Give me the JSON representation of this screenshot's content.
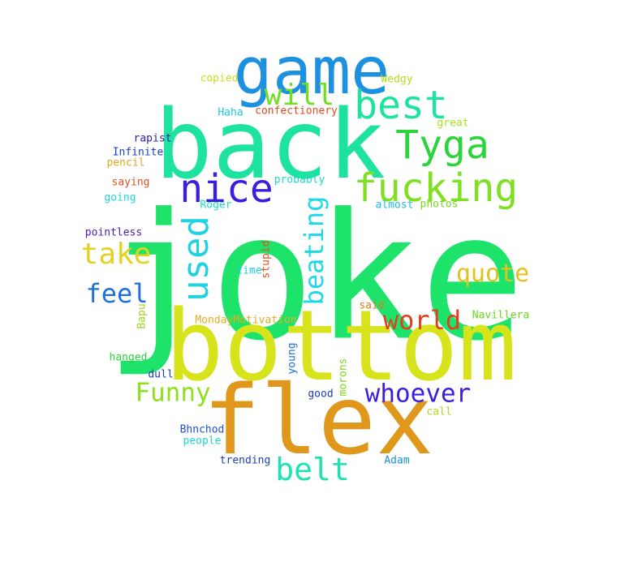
{
  "words": [
    {
      "text": "joke",
      "color": "#1ee36a"
    },
    {
      "text": "bottom",
      "color": "#d7e41c"
    },
    {
      "text": "back",
      "color": "#1ee3a0"
    },
    {
      "text": "flex",
      "color": "#e0981c"
    },
    {
      "text": "game",
      "color": "#1e90e0"
    },
    {
      "text": "fucking",
      "color": "#7ee01e"
    },
    {
      "text": "nice",
      "color": "#3a1ee0"
    },
    {
      "text": "best",
      "color": "#1ee3a0"
    },
    {
      "text": "Tyga",
      "color": "#2ad43a"
    },
    {
      "text": "will",
      "color": "#6fe01e"
    },
    {
      "text": "take",
      "color": "#e3d21e"
    },
    {
      "text": "used",
      "color": "#1ed2e0"
    },
    {
      "text": "beating",
      "color": "#1ed8e8"
    },
    {
      "text": "feel",
      "color": "#1e70e0"
    },
    {
      "text": "quote",
      "color": "#e3c21e"
    },
    {
      "text": "world",
      "color": "#e0401e"
    },
    {
      "text": "Funny",
      "color": "#8ee01e"
    },
    {
      "text": "whoever",
      "color": "#3a1ee0"
    },
    {
      "text": "belt",
      "color": "#1ee3b0"
    },
    {
      "text": "copied",
      "color": "#c8e01e"
    },
    {
      "text": "Wedgy",
      "color": "#b0e01e"
    },
    {
      "text": "Haha",
      "color": "#1ec8e0"
    },
    {
      "text": "confectionery",
      "color": "#e04a1e"
    },
    {
      "text": "great",
      "color": "#a8e01e"
    },
    {
      "text": "rapist",
      "color": "#2a1eb0"
    },
    {
      "text": "Infinite",
      "color": "#1e40c0"
    },
    {
      "text": "pencil",
      "color": "#e0a81e"
    },
    {
      "text": "saying",
      "color": "#e0501e"
    },
    {
      "text": "going",
      "color": "#1ed8d8"
    },
    {
      "text": "probably",
      "color": "#1ed8c8"
    },
    {
      "text": "almost",
      "color": "#1ec0e0"
    },
    {
      "text": "photos",
      "color": "#7ad81e"
    },
    {
      "text": "Roger",
      "color": "#1ee0c0"
    },
    {
      "text": "pointless",
      "color": "#4a1ec0"
    },
    {
      "text": "stupid",
      "color": "#e0501e"
    },
    {
      "text": "time",
      "color": "#1ed0e0"
    },
    {
      "text": "said",
      "color": "#e07a1e"
    },
    {
      "text": "MondayMotivation",
      "color": "#e0b01e"
    },
    {
      "text": "Navillera",
      "color": "#6ad81e"
    },
    {
      "text": "Bapu",
      "color": "#9ed81e"
    },
    {
      "text": "hanged",
      "color": "#2ad43a"
    },
    {
      "text": "young",
      "color": "#1e70d0"
    },
    {
      "text": "morons",
      "color": "#7ed81e"
    },
    {
      "text": "dull",
      "color": "#1e3ab0"
    },
    {
      "text": "good",
      "color": "#1e40b0"
    },
    {
      "text": "call",
      "color": "#b0d81e"
    },
    {
      "text": "Bhnchod",
      "color": "#1e50d0"
    },
    {
      "text": "people",
      "color": "#1ed8c0"
    },
    {
      "text": "trending",
      "color": "#1e40b0"
    },
    {
      "text": "Adam",
      "color": "#1e90e0"
    }
  ]
}
